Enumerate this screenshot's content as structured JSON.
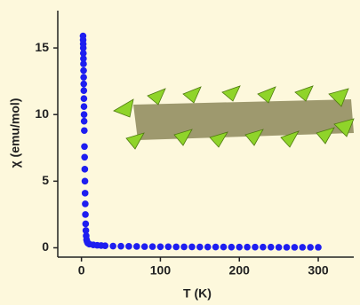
{
  "chart_data": {
    "type": "scatter",
    "xlabel": "T (K)",
    "ylabel": "χ (emu/mol)",
    "xlim": [
      -30,
      345
    ],
    "ylim": [
      -0.7,
      17.8
    ],
    "xticks": [
      0,
      100,
      200,
      300
    ],
    "yticks": [
      0,
      5,
      10,
      15
    ],
    "series": [
      {
        "color": "#1e1ef0",
        "x": [
          2.0,
          2.1,
          2.2,
          2.3,
          2.4,
          2.5,
          2.6,
          2.7,
          2.8,
          2.9,
          3.0,
          3.1,
          3.2,
          3.3,
          3.4,
          3.6,
          3.8,
          4.0,
          4.2,
          4.4,
          4.6,
          4.8,
          5.0,
          5.3,
          5.6,
          6.0,
          6.5,
          7.2,
          8.0,
          10,
          15,
          20,
          25,
          30,
          40,
          50,
          60,
          70,
          80,
          90,
          100,
          110,
          120,
          130,
          140,
          150,
          160,
          170,
          180,
          190,
          200,
          210,
          220,
          230,
          240,
          250,
          260,
          270,
          280,
          290,
          300
        ],
        "values": [
          15.9,
          15.6,
          15.3,
          15.0,
          14.6,
          14.2,
          13.8,
          13.3,
          12.8,
          12.3,
          11.8,
          11.2,
          10.6,
          10.0,
          9.5,
          8.8,
          7.6,
          6.8,
          5.9,
          5.0,
          4.1,
          3.3,
          2.5,
          1.8,
          1.3,
          0.9,
          0.6,
          0.45,
          0.35,
          0.28,
          0.22,
          0.19,
          0.17,
          0.15,
          0.13,
          0.12,
          0.11,
          0.1,
          0.09,
          0.09,
          0.08,
          0.08,
          0.07,
          0.07,
          0.07,
          0.06,
          0.06,
          0.06,
          0.06,
          0.05,
          0.05,
          0.05,
          0.05,
          0.05,
          0.05,
          0.04,
          0.04,
          0.04,
          0.04,
          0.04,
          0.04
        ]
      }
    ]
  }
}
